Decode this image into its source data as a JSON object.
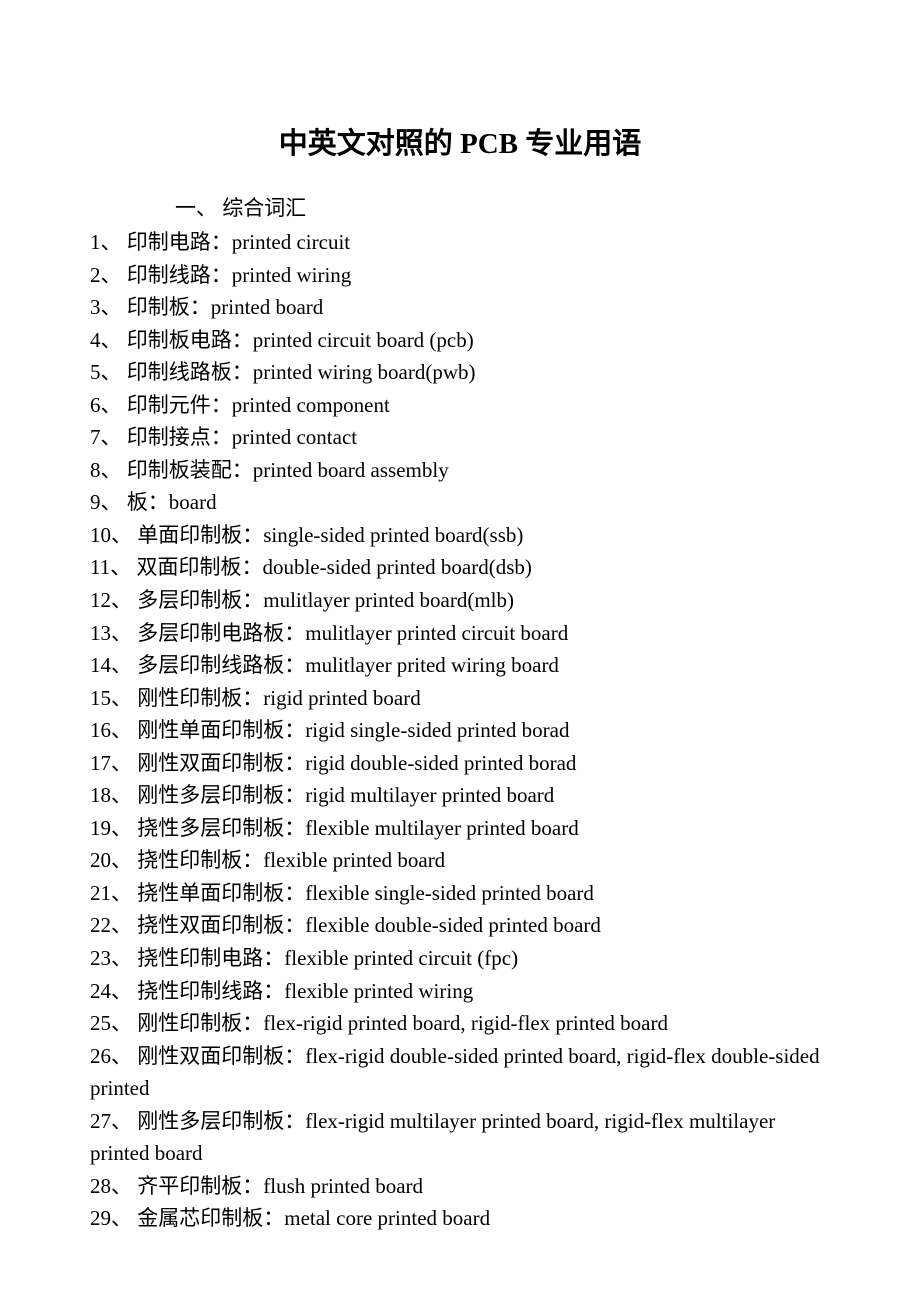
{
  "title": "中英文对照的 PCB 专业用语",
  "section_header": "一、 综合词汇",
  "entries": [
    "1、 印制电路：printed circuit",
    "2、 印制线路：printed wiring",
    "3、 印制板：printed board",
    "4、 印制板电路：printed circuit board (pcb)",
    "5、 印制线路板：printed wiring board(pwb)",
    "6、 印制元件：printed component",
    "7、 印制接点：printed contact",
    "8、 印制板装配：printed board assembly",
    "9、 板：board",
    "10、 单面印制板：single-sided printed board(ssb)",
    "11、 双面印制板：double-sided printed board(dsb)",
    "12、 多层印制板：mulitlayer printed board(mlb)",
    "13、 多层印制电路板：mulitlayer printed circuit board",
    "14、 多层印制线路板：mulitlayer prited wiring board",
    "15、 刚性印制板：rigid printed board",
    "16、 刚性单面印制板：rigid single-sided printed borad",
    "17、 刚性双面印制板：rigid double-sided printed borad",
    "18、 刚性多层印制板：rigid multilayer printed board",
    "19、 挠性多层印制板：flexible multilayer printed board",
    "20、 挠性印制板：flexible printed board",
    "21、 挠性单面印制板：flexible single-sided printed board",
    "22、 挠性双面印制板：flexible double-sided printed board",
    "23、 挠性印制电路：flexible printed circuit (fpc)",
    "24、 挠性印制线路：flexible printed wiring",
    "25、 刚性印制板：flex-rigid printed board, rigid-flex printed board",
    "26、 刚性双面印制板：flex-rigid double-sided printed board, rigid-flex double-sided printed",
    "27、 刚性多层印制板：flex-rigid multilayer printed board, rigid-flex multilayer printed board",
    "28、 齐平印制板：flush printed board",
    "29、 金属芯印制板：metal core printed board"
  ],
  "colors": {
    "background": "#ffffff",
    "text": "#000000",
    "watermark": "#e8e8e8"
  },
  "typography": {
    "title_fontsize": 29,
    "body_fontsize": 21,
    "line_height": 1.55
  }
}
